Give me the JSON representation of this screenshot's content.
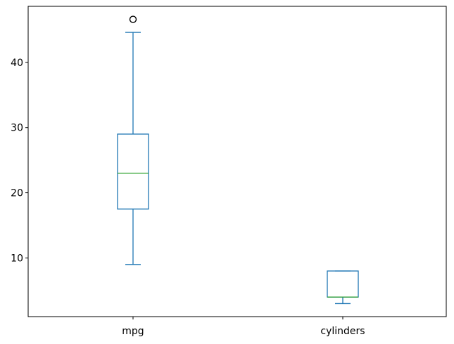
{
  "chart_data": {
    "type": "box",
    "categories": [
      "mpg",
      "cylinders"
    ],
    "ylim": [
      1.0,
      48.6
    ],
    "yticks": [
      10,
      20,
      30,
      40
    ],
    "ytick_labels": [
      "10",
      "20",
      "30",
      "40"
    ],
    "boxes": [
      {
        "label": "mpg",
        "whisker_low": 9.0,
        "q1": 17.5,
        "median": 23.0,
        "q3": 29.0,
        "whisker_high": 44.6,
        "fliers": [
          46.6
        ]
      },
      {
        "label": "cylinders",
        "whisker_low": 3.0,
        "q1": 4.0,
        "median": 4.0,
        "q3": 8.0,
        "whisker_high": 8.0,
        "fliers": []
      }
    ],
    "title": "",
    "xlabel": "",
    "ylabel": "",
    "grid": false,
    "colors": {
      "box": "#1f77b4",
      "median": "#2ca02c",
      "flier": "#000000"
    }
  }
}
